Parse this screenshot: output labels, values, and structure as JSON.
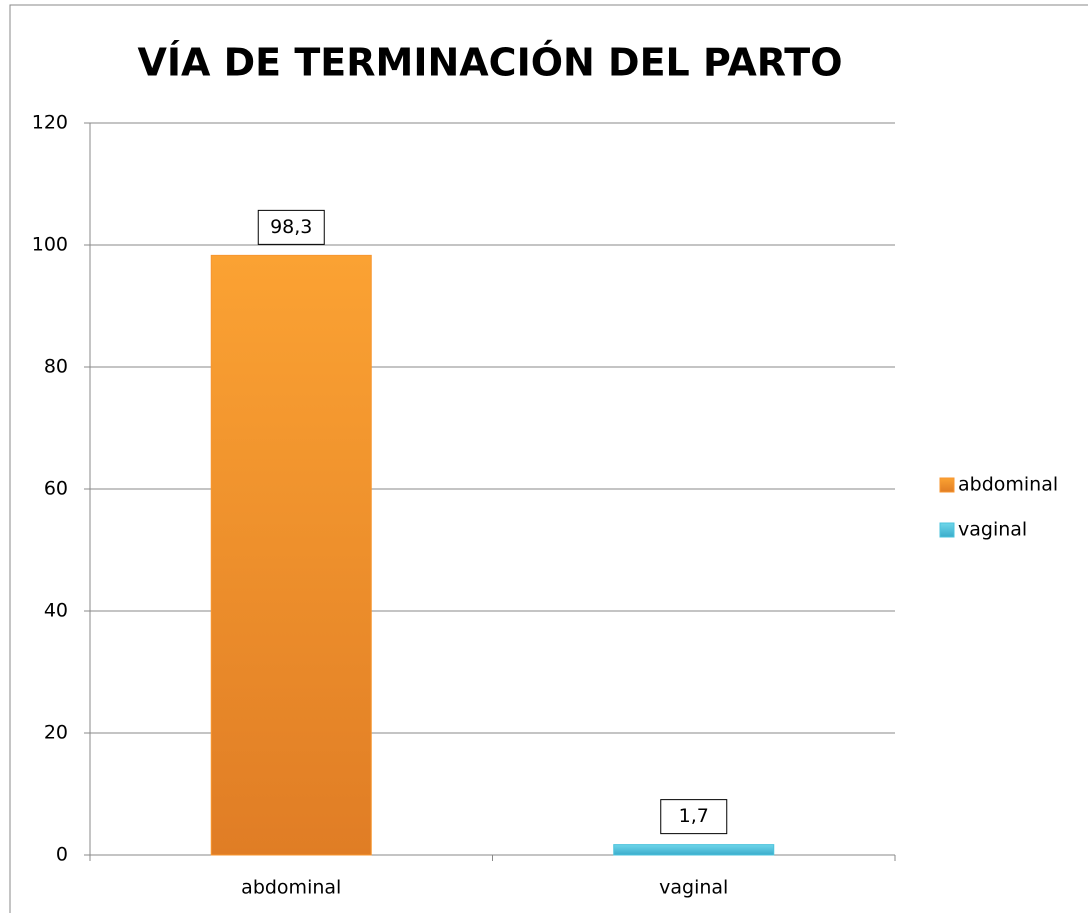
{
  "chart_data": {
    "type": "bar",
    "title": "VÍA DE TERMINACIÓN DEL PARTO",
    "categories": [
      "abdominal",
      "vaginal"
    ],
    "series": [
      {
        "name": "abdominal",
        "color": "#f7962f",
        "values": [
          98.3,
          null
        ],
        "value_labels": [
          "98,3",
          null
        ]
      },
      {
        "name": "vaginal",
        "color": "#4bc3dc",
        "values": [
          null,
          1.7
        ],
        "value_labels": [
          null,
          "1,7"
        ]
      }
    ],
    "ylim": [
      0,
      120
    ],
    "yticks": [
      0,
      20,
      40,
      60,
      80,
      100,
      120
    ],
    "grid": true,
    "legend": "right"
  }
}
